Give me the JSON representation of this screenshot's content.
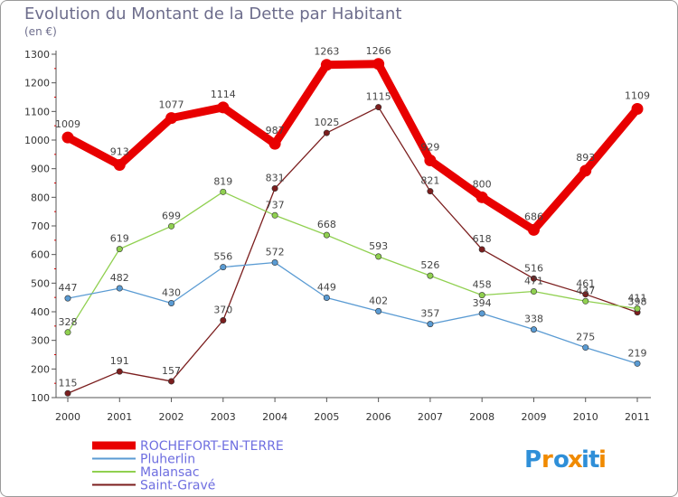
{
  "chart_data": {
    "type": "line",
    "title": "Evolution du Montant de la Dette par Habitant",
    "subtitle": "(en €)",
    "xlabel": "",
    "ylabel": "",
    "ylim": [
      100,
      1300
    ],
    "yticks": [
      100,
      200,
      300,
      400,
      500,
      600,
      700,
      800,
      900,
      1000,
      1100,
      1200,
      1300
    ],
    "categories": [
      "2000",
      "2001",
      "2002",
      "2003",
      "2004",
      "2005",
      "2006",
      "2007",
      "2008",
      "2009",
      "2010",
      "2011"
    ],
    "grid": false,
    "legend_position": "bottom-left",
    "series": [
      {
        "name": "ROCHEFORT-EN-TERRE",
        "color": "#e80000",
        "values": [
          1009,
          913,
          1077,
          1114,
          987,
          1263,
          1266,
          929,
          800,
          686,
          893,
          1109
        ]
      },
      {
        "name": "Pluherlin",
        "color": "#5a9bd3",
        "values": [
          447,
          482,
          430,
          556,
          572,
          449,
          402,
          357,
          394,
          338,
          275,
          219
        ]
      },
      {
        "name": "Malansac",
        "color": "#90d050",
        "values": [
          328,
          619,
          699,
          819,
          737,
          668,
          593,
          526,
          458,
          471,
          437,
          411
        ]
      },
      {
        "name": "Saint-Gravé",
        "color": "#7b1e1e",
        "values": [
          115,
          191,
          157,
          370,
          831,
          1025,
          1115,
          821,
          618,
          516,
          461,
          398
        ]
      }
    ]
  },
  "logo": {
    "letters": [
      "P",
      "r",
      "o",
      "x",
      "i",
      "t",
      "i"
    ],
    "colors": [
      "#2f8fd8",
      "#f08a00",
      "#2f8fd8",
      "#f08a00",
      "#2f8fd8",
      "#2f8fd8",
      "#f08a00"
    ]
  }
}
